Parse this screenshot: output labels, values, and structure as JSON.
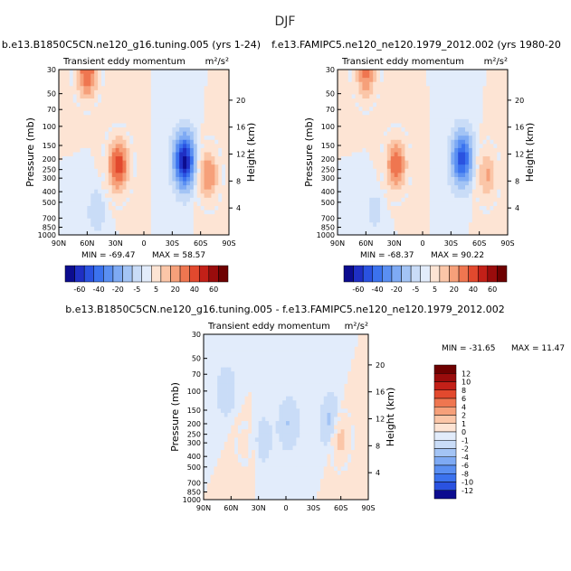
{
  "figure": {
    "title": "DJF"
  },
  "colors": {
    "diverging": [
      "#0c0c8f",
      "#1f2fc4",
      "#2a52e0",
      "#3b72ee",
      "#5a8ff2",
      "#7eaaf4",
      "#a3c4f5",
      "#c9dcf7",
      "#e2ecfb",
      "#fde4d4",
      "#fbc6a8",
      "#f6a07a",
      "#ef7650",
      "#e2492e",
      "#c32018",
      "#9a0c0c",
      "#6e0000"
    ]
  },
  "chart_data": [
    {
      "type": "heatmap",
      "id": "panel1",
      "title": "b.e13.B1850C5CN.ne120_g16.tuning.005 (yrs 1-24)",
      "subtitle_left": "Transient eddy momentum",
      "subtitle_right": "m²/s²",
      "ylabel": "Pressure (mb)",
      "ylabel_right": "Height (km)",
      "x_ticks": [
        "90N",
        "60N",
        "30N",
        "0",
        "30S",
        "60S",
        "90S"
      ],
      "y_ticks": [
        "30",
        "50",
        "70",
        "100",
        "150",
        "200",
        "250",
        "300",
        "400",
        "500",
        "700",
        "850",
        "1000"
      ],
      "y_ticks_right": [
        "20",
        "16",
        "12",
        "8",
        "4"
      ],
      "min": "-69.47",
      "max": "58.57",
      "min_label": "MIN =",
      "max_label": "MAX =",
      "colorbar_levels": [
        "-60",
        "-40",
        "-20",
        "-5",
        "5",
        "20",
        "40",
        "60"
      ],
      "features": [
        {
          "lat": 27,
          "p": 230,
          "peak": 45
        },
        {
          "lat": 60,
          "p": 32,
          "peak": 40
        },
        {
          "lat": -43,
          "p": 210,
          "peak": -69
        },
        {
          "lat": -68,
          "p": 280,
          "peak": 30
        },
        {
          "lat": 50,
          "p": 600,
          "peak": -8
        }
      ]
    },
    {
      "type": "heatmap",
      "id": "panel2",
      "title": "f.e13.FAMIPC5.ne120_ne120.1979_2012.002 (yrs 1980-20",
      "subtitle_left": "Transient eddy momentum",
      "subtitle_right": "m²/s²",
      "ylabel": "Pressure (mb)",
      "ylabel_right": "Height (km)",
      "x_ticks": [
        "90N",
        "60N",
        "30N",
        "0",
        "30S",
        "60S",
        "90S"
      ],
      "y_ticks": [
        "30",
        "50",
        "70",
        "100",
        "150",
        "200",
        "250",
        "300",
        "400",
        "500",
        "700",
        "850",
        "1000"
      ],
      "y_ticks_right": [
        "20",
        "16",
        "12",
        "8",
        "4"
      ],
      "min": "-68.37",
      "max": "90.22",
      "min_label": "MIN =",
      "max_label": "MAX =",
      "colorbar_levels": [
        "-60",
        "-40",
        "-20",
        "-5",
        "5",
        "20",
        "40",
        "60"
      ],
      "features": [
        {
          "lat": 28,
          "p": 225,
          "peak": 48
        },
        {
          "lat": 60,
          "p": 32,
          "peak": 42
        },
        {
          "lat": -42,
          "p": 200,
          "peak": -68
        },
        {
          "lat": -68,
          "p": 280,
          "peak": 30
        },
        {
          "lat": 50,
          "p": 600,
          "peak": -8
        }
      ]
    },
    {
      "type": "heatmap",
      "id": "diff",
      "title": "b.e13.B1850C5CN.ne120_g16.tuning.005 - f.e13.FAMIPC5.ne120_ne120.1979_2012.002",
      "subtitle_left": "Transient eddy momentum",
      "subtitle_right": "m²/s²",
      "ylabel": "Pressure (mb)",
      "ylabel_right": "Height (km)",
      "x_ticks": [
        "90N",
        "60N",
        "30N",
        "0",
        "30S",
        "60S",
        "90S"
      ],
      "y_ticks": [
        "30",
        "50",
        "70",
        "100",
        "150",
        "200",
        "250",
        "300",
        "400",
        "500",
        "700",
        "850",
        "1000"
      ],
      "y_ticks_right": [
        "20",
        "16",
        "12",
        "8",
        "4"
      ],
      "min": "-31.65",
      "max": "11.47",
      "min_label": "MIN =",
      "max_label": "MAX =",
      "colorbar_levels": [
        "12",
        "10",
        "8",
        "6",
        "4",
        "2",
        "1",
        "0",
        "-1",
        "-2",
        "-4",
        "-6",
        "-8",
        "-10",
        "-12"
      ],
      "features": [
        {
          "lat": -58,
          "p": 260,
          "peak": 11
        },
        {
          "lat": -50,
          "p": 200,
          "peak": -10
        },
        {
          "lat": -3,
          "p": 200,
          "peak": -6
        },
        {
          "lat": 65,
          "p": 100,
          "peak": -5
        },
        {
          "lat": 25,
          "p": 280,
          "peak": -4
        },
        {
          "lat": 45,
          "p": 300,
          "peak": 3
        }
      ]
    }
  ]
}
